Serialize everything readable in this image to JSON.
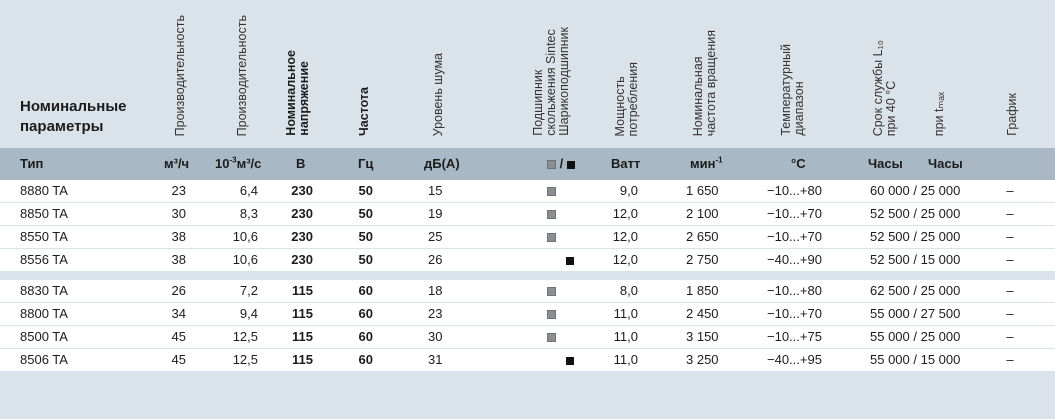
{
  "header": {
    "title_line1": "Номинальные",
    "title_line2": "параметры",
    "columns": [
      {
        "key": "flow_m3h",
        "lines": [
          "Производительность"
        ],
        "bold": false
      },
      {
        "key": "flow_si",
        "lines": [
          "Производительность"
        ],
        "bold": false
      },
      {
        "key": "voltage",
        "lines": [
          "Номинальное",
          "напряжение"
        ],
        "bold": true
      },
      {
        "key": "freq",
        "lines": [
          "Частота"
        ],
        "bold": true
      },
      {
        "key": "noise",
        "lines": [
          "Уровень шума"
        ],
        "bold": false
      },
      {
        "key": "bearing",
        "lines": [
          "Подшипник",
          "скольжения Sintec",
          "Шарикоподшипник"
        ],
        "bold": false
      },
      {
        "key": "power",
        "lines": [
          "Мощность",
          "потребления"
        ],
        "bold": false
      },
      {
        "key": "speed",
        "lines": [
          "Номинальная",
          "частота вращения"
        ],
        "bold": false
      },
      {
        "key": "temp",
        "lines": [
          "Температурный",
          "диапазон"
        ],
        "bold": false
      },
      {
        "key": "life",
        "lines": [
          "Срок службы L₁₀",
          "при 40 °C"
        ],
        "bold": false
      },
      {
        "key": "life_tmax",
        "lines": [
          "при tₘₐₓ"
        ],
        "bold": false
      },
      {
        "key": "chart",
        "lines": [
          "График"
        ],
        "bold": false
      }
    ]
  },
  "units": {
    "type": "Тип",
    "flow_m3h": "м³/ч",
    "flow_si_a": "10",
    "flow_si_sup": "-3",
    "flow_si_b": "м³/с",
    "voltage": "В",
    "freq": "Гц",
    "noise": "дБ(А)",
    "bearing_sep": "/",
    "power": "Ватт",
    "speed": "мин",
    "speed_sup": "-1",
    "temp": "°C",
    "life": "Часы",
    "life_tmax": "Часы"
  },
  "groups": [
    [
      {
        "type": "8880 TA",
        "flow": "23",
        "flow_si": "6,4",
        "voltage": "230",
        "freq": "50",
        "noise": "15",
        "bearing": "sleeve",
        "power": "9,0",
        "speed": "1 650",
        "temp": "−10...+80",
        "life": "60 000 / 25 000",
        "chart": "–"
      },
      {
        "type": "8850 TA",
        "flow": "30",
        "flow_si": "8,3",
        "voltage": "230",
        "freq": "50",
        "noise": "19",
        "bearing": "sleeve",
        "power": "12,0",
        "speed": "2 100",
        "temp": "−10...+70",
        "life": "52 500 / 25 000",
        "chart": "–"
      },
      {
        "type": "8550 TA",
        "flow": "38",
        "flow_si": "10,6",
        "voltage": "230",
        "freq": "50",
        "noise": "25",
        "bearing": "sleeve",
        "power": "12,0",
        "speed": "2 650",
        "temp": "−10...+70",
        "life": "52 500 / 25 000",
        "chart": "–"
      },
      {
        "type": "8556 TA",
        "flow": "38",
        "flow_si": "10,6",
        "voltage": "230",
        "freq": "50",
        "noise": "26",
        "bearing": "ball",
        "power": "12,0",
        "speed": "2 750",
        "temp": "−40...+90",
        "life": "52 500 / 15 000",
        "chart": "–"
      }
    ],
    [
      {
        "type": "8830 TA",
        "flow": "26",
        "flow_si": "7,2",
        "voltage": "115",
        "freq": "60",
        "noise": "18",
        "bearing": "sleeve",
        "power": "8,0",
        "speed": "1 850",
        "temp": "−10...+80",
        "life": "62 500 / 25 000",
        "chart": "–"
      },
      {
        "type": "8800 TA",
        "flow": "34",
        "flow_si": "9,4",
        "voltage": "115",
        "freq": "60",
        "noise": "23",
        "bearing": "sleeve",
        "power": "11,0",
        "speed": "2 450",
        "temp": "−10...+70",
        "life": "55 000 / 27 500",
        "chart": "–"
      },
      {
        "type": "8500 TA",
        "flow": "45",
        "flow_si": "12,5",
        "voltage": "115",
        "freq": "60",
        "noise": "30",
        "bearing": "sleeve",
        "power": "11,0",
        "speed": "3 150",
        "temp": "−10...+75",
        "life": "55 000 / 25 000",
        "chart": "–"
      },
      {
        "type": "8506 TA",
        "flow": "45",
        "flow_si": "12,5",
        "voltage": "115",
        "freq": "60",
        "noise": "31",
        "bearing": "ball",
        "power": "11,0",
        "speed": "3 250",
        "temp": "−40...+95",
        "life": "55 000 / 15 000",
        "chart": "–"
      }
    ]
  ],
  "colors": {
    "header_bg": "#dbe3ea",
    "units_bg": "#a9b8c5",
    "row_bg": "#ffffff",
    "sleeve_marker": "#8a8f94",
    "ball_marker": "#111111"
  }
}
